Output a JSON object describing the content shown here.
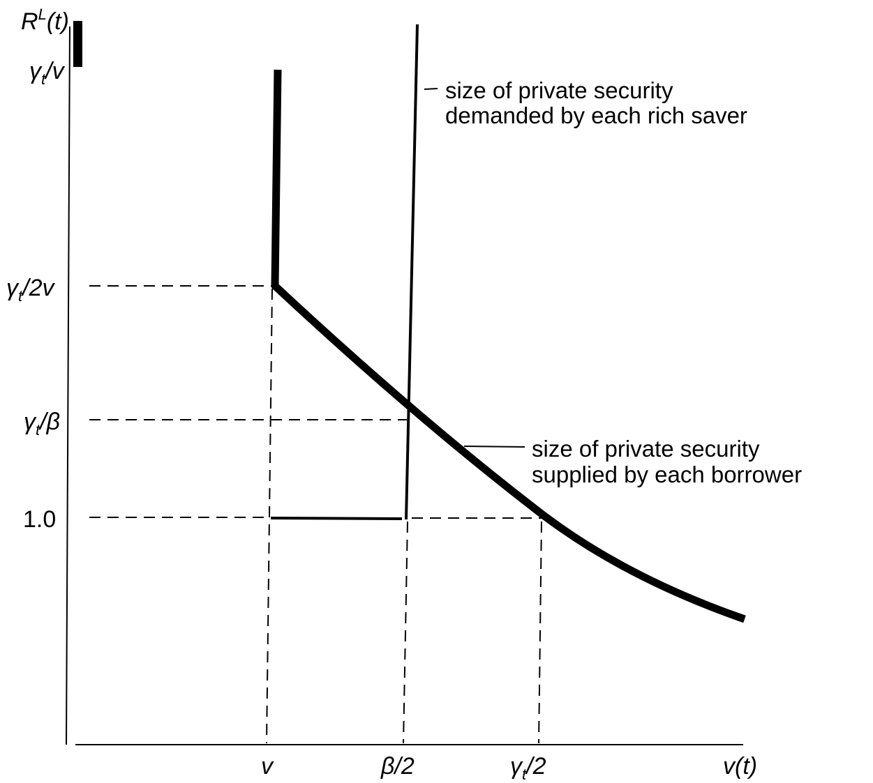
{
  "axes": {
    "y_label_main": "R",
    "y_label_sup": "L",
    "y_label_arg": "(t)",
    "x_label_main": "v",
    "x_label_arg": "(t)"
  },
  "y_ticks": {
    "gamma_over_v": {
      "main": "γ",
      "sub": "t",
      "rest": "/v"
    },
    "gamma_over_2v": {
      "main": "γ",
      "sub": "t",
      "rest": "/2v"
    },
    "gamma_over_beta": {
      "main": "γ",
      "sub": "t",
      "rest": "/β"
    },
    "one": "1.0"
  },
  "x_ticks": {
    "v": "v",
    "beta_over_2": "β/2",
    "gamma_over_2": {
      "main": "γ",
      "sub": "t",
      "rest": "/2"
    }
  },
  "annotations": {
    "demand": {
      "line1": "size of private security",
      "line2": "demanded by each rich saver"
    },
    "supply": {
      "line1": "size of private security",
      "line2": "supplied by each borrower"
    }
  }
}
